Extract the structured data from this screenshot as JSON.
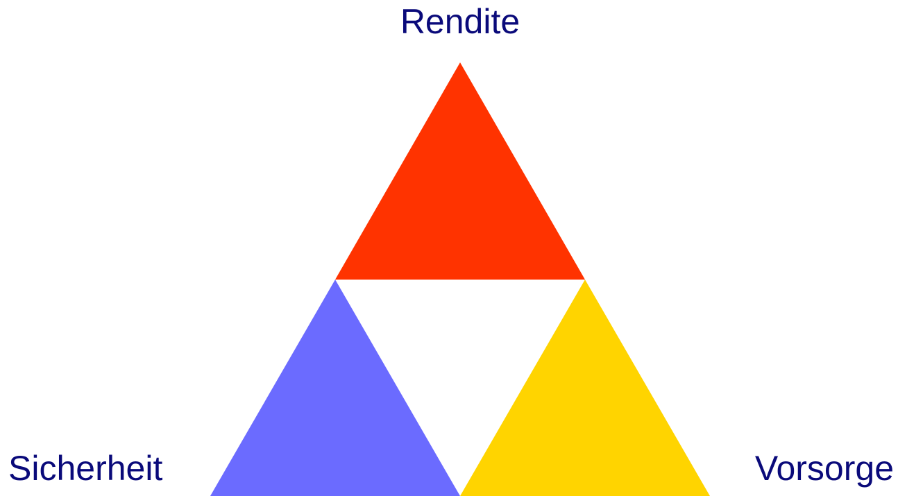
{
  "nodes": [
    {
      "label": "Rendite",
      "color": "#ff3300"
    },
    {
      "label": "Sicherheit",
      "color": "#6b6bff"
    },
    {
      "label": "Vorsorge",
      "color": "#ffd400"
    }
  ]
}
